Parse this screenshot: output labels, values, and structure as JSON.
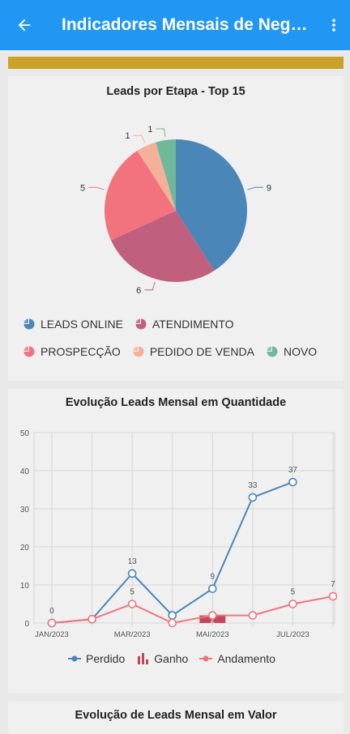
{
  "appbar": {
    "title": "Indicadores Mensais de Negócios",
    "back_icon": "arrow-left-icon",
    "menu_icon": "more-vertical-icon"
  },
  "pie_card": {
    "title": "Leads por Etapa - Top 15"
  },
  "line_card": {
    "title": "Evolução Leads Mensal em Quantidade"
  },
  "value_card": {
    "title": "Evolução de Leads Mensal em Valor"
  },
  "colors": {
    "appbar": "#2196f3",
    "gold": "#c9a227",
    "blue": "#4a86b8",
    "mauve": "#c0607e",
    "pink": "#f2737e",
    "peach": "#f5b09a",
    "green": "#6fb89a",
    "red_bar": "#c0485e"
  },
  "chart_data": [
    {
      "type": "pie",
      "title": "Leads por Etapa - Top 15",
      "slices": [
        {
          "label": "LEADS ONLINE",
          "value": 9,
          "color": "#4a86b8"
        },
        {
          "label": "ATENDIMENTO",
          "value": 6,
          "color": "#c0607e"
        },
        {
          "label": "PROSPECÇÃO",
          "value": 5,
          "color": "#f2737e"
        },
        {
          "label": "PEDIDO DE VENDA",
          "value": 1,
          "color": "#f5b09a"
        },
        {
          "label": "NOVO",
          "value": 1,
          "color": "#6fb89a"
        }
      ],
      "legend": "bottom"
    },
    {
      "type": "line",
      "title": "Evolução Leads Mensal em Quantidade",
      "ylim": [
        0,
        50
      ],
      "yticks": [
        0,
        10,
        20,
        30,
        40,
        50
      ],
      "xticks": [
        "JAN/2023",
        "MAR/2023",
        "MAI/2023",
        "JUL/2023"
      ],
      "grid": true,
      "legend": "bottom",
      "series": [
        {
          "name": "Perdido",
          "type": "line",
          "color": "#4a86b8",
          "values": [
            0,
            1,
            13,
            2,
            9,
            33,
            37,
            null
          ],
          "labels": [
            null,
            null,
            "13",
            null,
            "9",
            "33",
            "37",
            null
          ]
        },
        {
          "name": "Ganho",
          "type": "bar",
          "color": "#c0485e",
          "values": [
            0,
            0,
            0,
            0,
            2,
            0,
            0,
            0
          ],
          "labels": [
            null,
            null,
            null,
            null,
            "2",
            null,
            null,
            null
          ]
        },
        {
          "name": "Andamento",
          "type": "line",
          "color": "#f2737e",
          "values": [
            0,
            1,
            5,
            0,
            2,
            2,
            5,
            7
          ],
          "labels": [
            "0",
            null,
            "5",
            null,
            null,
            null,
            "5",
            "7"
          ]
        }
      ]
    }
  ]
}
